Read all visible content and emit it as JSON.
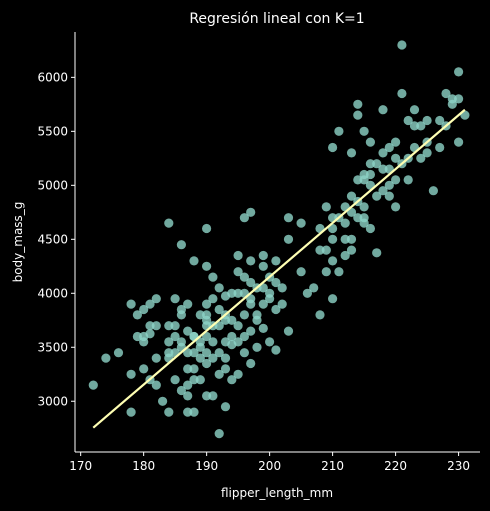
{
  "chart_data": {
    "type": "scatter",
    "title": "Regresión lineal con K=1",
    "xlabel": "flipper_length_mm",
    "ylabel": "body_mass_g",
    "xlim": [
      169.1,
      233.4
    ],
    "ylim": [
      2530,
      6420
    ],
    "xticks": [
      170,
      180,
      190,
      200,
      210,
      220,
      230
    ],
    "yticks": [
      3000,
      3500,
      4000,
      4500,
      5000,
      5500,
      6000
    ],
    "grid": false,
    "legend": "none",
    "colors": {
      "background": "#000000",
      "points": "#8dd3c7",
      "line": "#ffffb3",
      "axis": "#ffffff"
    },
    "regression_line": {
      "x": [
        172,
        231
      ],
      "y": [
        2755,
        5700
      ]
    },
    "points": [
      [
        172,
        3150
      ],
      [
        174,
        3400
      ],
      [
        176,
        3450
      ],
      [
        178,
        3250
      ],
      [
        178,
        3900
      ],
      [
        178,
        2900
      ],
      [
        179,
        3600
      ],
      [
        179,
        3800
      ],
      [
        180,
        3600
      ],
      [
        180,
        3550
      ],
      [
        180,
        3850
      ],
      [
        180,
        3300
      ],
      [
        181,
        3900
      ],
      [
        181,
        3700
      ],
      [
        181,
        3200
      ],
      [
        181,
        3625
      ],
      [
        182,
        3950
      ],
      [
        182,
        3700
      ],
      [
        182,
        3150
      ],
      [
        182,
        3400
      ],
      [
        183,
        3000
      ],
      [
        184,
        3700
      ],
      [
        184,
        3550
      ],
      [
        184,
        3400
      ],
      [
        184,
        4650
      ],
      [
        184,
        3450
      ],
      [
        184,
        2900
      ],
      [
        185,
        3700
      ],
      [
        185,
        3450
      ],
      [
        185,
        3950
      ],
      [
        185,
        3600
      ],
      [
        185,
        3200
      ],
      [
        186,
        4450
      ],
      [
        186,
        3800
      ],
      [
        186,
        3500
      ],
      [
        186,
        3100
      ],
      [
        186,
        3550
      ],
      [
        187,
        3300
      ],
      [
        187,
        3650
      ],
      [
        187,
        3450
      ],
      [
        187,
        3150
      ],
      [
        187,
        3900
      ],
      [
        187,
        3050
      ],
      [
        187,
        2900
      ],
      [
        188,
        3600
      ],
      [
        188,
        3300
      ],
      [
        188,
        3450
      ],
      [
        188,
        3200
      ],
      [
        188,
        4300
      ],
      [
        188,
        3600
      ],
      [
        188,
        2900
      ],
      [
        189,
        3500
      ],
      [
        189,
        3200
      ],
      [
        189,
        3800
      ],
      [
        189,
        3550
      ],
      [
        189,
        3400
      ],
      [
        190,
        3750
      ],
      [
        190,
        3900
      ],
      [
        190,
        3450
      ],
      [
        190,
        3600
      ],
      [
        190,
        4250
      ],
      [
        190,
        3050
      ],
      [
        190,
        3350
      ],
      [
        190,
        3800
      ],
      [
        190,
        4600
      ],
      [
        191,
        3700
      ],
      [
        191,
        3400
      ],
      [
        191,
        4150
      ],
      [
        191,
        3950
      ],
      [
        191,
        3050
      ],
      [
        191,
        3550
      ],
      [
        192,
        3700
      ],
      [
        192,
        3450
      ],
      [
        192,
        4050
      ],
      [
        192,
        3250
      ],
      [
        192,
        3850
      ],
      [
        192,
        2700
      ],
      [
        193,
        3800
      ],
      [
        193,
        3550
      ],
      [
        193,
        3975
      ],
      [
        193,
        3400
      ],
      [
        193,
        3300
      ],
      [
        193,
        2950
      ],
      [
        194,
        4000
      ],
      [
        194,
        3600
      ],
      [
        194,
        3750
      ],
      [
        194,
        3525
      ],
      [
        194,
        3200
      ],
      [
        195,
        4350
      ],
      [
        195,
        3700
      ],
      [
        195,
        3550
      ],
      [
        195,
        4000
      ],
      [
        195,
        3250
      ],
      [
        195,
        4200
      ],
      [
        196,
        4150
      ],
      [
        196,
        3600
      ],
      [
        196,
        3800
      ],
      [
        196,
        4000
      ],
      [
        196,
        4700
      ],
      [
        196,
        3450
      ],
      [
        197,
        3900
      ],
      [
        197,
        4100
      ],
      [
        197,
        3650
      ],
      [
        197,
        4300
      ],
      [
        197,
        3350
      ],
      [
        197,
        4750
      ],
      [
        198,
        3750
      ],
      [
        198,
        4050
      ],
      [
        198,
        3500
      ],
      [
        198,
        3800
      ],
      [
        199,
        4050
      ],
      [
        199,
        3675
      ],
      [
        199,
        4350
      ],
      [
        199,
        3900
      ],
      [
        200,
        3950
      ],
      [
        200,
        4150
      ],
      [
        200,
        3550
      ],
      [
        200,
        4000
      ],
      [
        201,
        3850
      ],
      [
        201,
        4300
      ],
      [
        201,
        4100
      ],
      [
        202,
        3900
      ],
      [
        202,
        4050
      ],
      [
        203,
        4700
      ],
      [
        203,
        4500
      ],
      [
        203,
        3650
      ],
      [
        205,
        4200
      ],
      [
        206,
        4000
      ],
      [
        207,
        4050
      ],
      [
        208,
        4400
      ],
      [
        208,
        4600
      ],
      [
        208,
        3800
      ],
      [
        209,
        4800
      ],
      [
        209,
        4200
      ],
      [
        209,
        4400
      ],
      [
        210,
        4700
      ],
      [
        210,
        4500
      ],
      [
        210,
        4300
      ],
      [
        210,
        3950
      ],
      [
        210,
        5350
      ],
      [
        211,
        4700
      ],
      [
        211,
        4200
      ],
      [
        211,
        5500
      ],
      [
        212,
        4800
      ],
      [
        212,
        4650
      ],
      [
        212,
        4500
      ],
      [
        212,
        4350
      ],
      [
        213,
        4750
      ],
      [
        213,
        4500
      ],
      [
        213,
        5300
      ],
      [
        213,
        4900
      ],
      [
        213,
        4400
      ],
      [
        214,
        4850
      ],
      [
        214,
        4700
      ],
      [
        214,
        5050
      ],
      [
        214,
        5650
      ],
      [
        215,
        5100
      ],
      [
        215,
        4700
      ],
      [
        215,
        4650
      ],
      [
        215,
        5500
      ],
      [
        215,
        5050
      ],
      [
        215,
        4800
      ],
      [
        216,
        5000
      ],
      [
        216,
        4600
      ],
      [
        216,
        5400
      ],
      [
        216,
        5100
      ],
      [
        217,
        4900
      ],
      [
        217,
        5200
      ],
      [
        217,
        4375
      ],
      [
        218,
        5300
      ],
      [
        218,
        5150
      ],
      [
        218,
        4950
      ],
      [
        218,
        5700
      ],
      [
        219,
        5000
      ],
      [
        219,
        5350
      ],
      [
        219,
        4900
      ],
      [
        220,
        5050
      ],
      [
        220,
        5400
      ],
      [
        220,
        5250
      ],
      [
        220,
        4800
      ],
      [
        221,
        5200
      ],
      [
        221,
        6300
      ],
      [
        221,
        5850
      ],
      [
        222,
        5250
      ],
      [
        222,
        5600
      ],
      [
        222,
        5050
      ],
      [
        223,
        5550
      ],
      [
        223,
        5700
      ],
      [
        223,
        5350
      ],
      [
        224,
        5550
      ],
      [
        224,
        5250
      ],
      [
        225,
        5300
      ],
      [
        225,
        5600
      ],
      [
        225,
        5400
      ],
      [
        226,
        4950
      ],
      [
        227,
        5350
      ],
      [
        227,
        5600
      ],
      [
        228,
        5550
      ],
      [
        228,
        5850
      ],
      [
        229,
        5800
      ],
      [
        229,
        5750
      ],
      [
        230,
        6050
      ],
      [
        230,
        5800
      ],
      [
        230,
        5400
      ],
      [
        231,
        5650
      ],
      [
        219,
        5150
      ],
      [
        216,
        5200
      ],
      [
        214,
        5750
      ],
      [
        201,
        3475
      ],
      [
        210,
        4600
      ],
      [
        205,
        4650
      ],
      [
        199,
        4250
      ],
      [
        190,
        3700
      ],
      [
        186,
        3850
      ],
      [
        193,
        3750
      ],
      [
        197,
        3950
      ]
    ]
  }
}
